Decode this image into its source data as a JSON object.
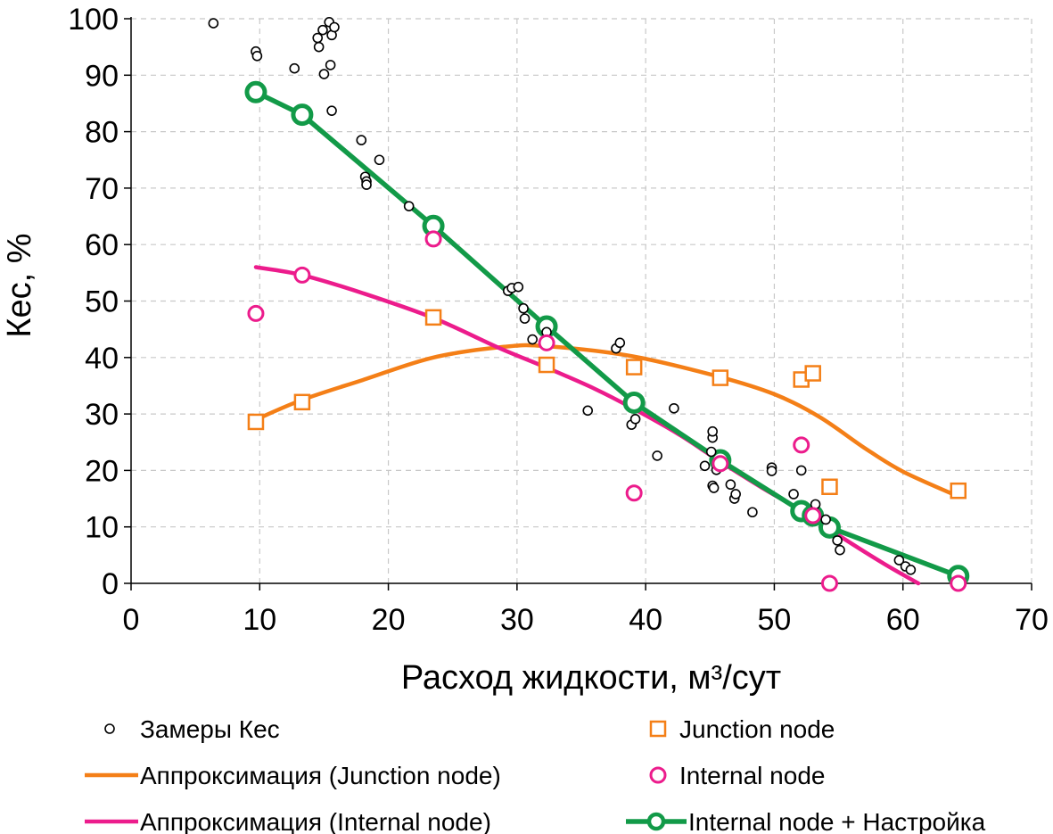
{
  "chart_data": {
    "type": "scatter",
    "xlabel": "Расход жидкости, м³/сут",
    "ylabel": "Кес, %",
    "xlim": [
      0,
      70
    ],
    "ylim": [
      0,
      100
    ],
    "xticks": [
      "0",
      "10",
      "20",
      "30",
      "40",
      "50",
      "60",
      "70"
    ],
    "yticks": [
      "0",
      "10",
      "20",
      "30",
      "40",
      "50",
      "60",
      "70",
      "80",
      "90",
      "100"
    ],
    "grid": "dashed",
    "legend": "bottom",
    "series": [
      {
        "name": "Замеры Кес",
        "kind": "scatter",
        "marker": "circle-small",
        "color": "#000000",
        "points": [
          [
            6.4,
            99.2
          ],
          [
            9.7,
            94.2
          ],
          [
            9.8,
            93.4
          ],
          [
            12.7,
            91.2
          ],
          [
            14.5,
            96.6
          ],
          [
            14.6,
            95.0
          ],
          [
            14.9,
            98.0
          ],
          [
            15.0,
            90.2
          ],
          [
            15.4,
            99.4
          ],
          [
            15.5,
            91.8
          ],
          [
            15.6,
            97.1
          ],
          [
            15.8,
            98.5
          ],
          [
            15.6,
            83.7
          ],
          [
            17.9,
            78.5
          ],
          [
            18.2,
            72.0
          ],
          [
            18.3,
            71.2
          ],
          [
            18.3,
            70.6
          ],
          [
            19.3,
            75.0
          ],
          [
            21.6,
            66.8
          ],
          [
            29.3,
            51.8
          ],
          [
            29.6,
            52.3
          ],
          [
            30.1,
            52.5
          ],
          [
            30.5,
            48.7
          ],
          [
            30.6,
            46.9
          ],
          [
            31.2,
            43.2
          ],
          [
            32.3,
            44.5
          ],
          [
            35.5,
            30.6
          ],
          [
            37.7,
            41.6
          ],
          [
            38.0,
            42.6
          ],
          [
            38.9,
            28.1
          ],
          [
            39.2,
            29.1
          ],
          [
            40.9,
            22.6
          ],
          [
            42.2,
            31.0
          ],
          [
            44.6,
            20.8
          ],
          [
            45.2,
            25.8
          ],
          [
            45.2,
            26.9
          ],
          [
            45.1,
            23.3
          ],
          [
            45.2,
            17.3
          ],
          [
            45.3,
            16.9
          ],
          [
            45.5,
            20.1
          ],
          [
            46.6,
            17.5
          ],
          [
            46.9,
            15.0
          ],
          [
            47.0,
            15.8
          ],
          [
            48.3,
            12.6
          ],
          [
            49.8,
            20.5
          ],
          [
            49.8,
            19.9
          ],
          [
            51.5,
            15.8
          ],
          [
            52.1,
            20.0
          ],
          [
            53.2,
            14.0
          ],
          [
            54.0,
            11.3
          ],
          [
            54.9,
            7.6
          ],
          [
            55.1,
            5.9
          ],
          [
            59.7,
            4.1
          ],
          [
            60.2,
            3.0
          ],
          [
            60.6,
            2.4
          ]
        ]
      },
      {
        "name": "Аппроксимация (Junction node)",
        "kind": "line",
        "color": "#F47F17",
        "points": [
          [
            9.7,
            29.0
          ],
          [
            13.3,
            32.5
          ],
          [
            18,
            36.0
          ],
          [
            23.5,
            40.0
          ],
          [
            29,
            41.9
          ],
          [
            32.3,
            42.0
          ],
          [
            39,
            40.2
          ],
          [
            45.7,
            36.6
          ],
          [
            50,
            33.5
          ],
          [
            53.5,
            29.5
          ],
          [
            57,
            24.0
          ],
          [
            60,
            19.8
          ],
          [
            64.3,
            15.4
          ]
        ]
      },
      {
        "name": "Аппроксимация (Internal node)",
        "kind": "line",
        "color": "#EC1C8C",
        "points": [
          [
            9.7,
            56.0
          ],
          [
            13.3,
            54.6
          ],
          [
            18,
            51.4
          ],
          [
            23.5,
            47.0
          ],
          [
            28.5,
            41.8
          ],
          [
            32.3,
            38.2
          ],
          [
            36,
            34.5
          ],
          [
            39,
            31.0
          ],
          [
            42.5,
            26.5
          ],
          [
            45.7,
            21.7
          ],
          [
            49,
            17.0
          ],
          [
            52,
            13.0
          ],
          [
            55,
            8.5
          ],
          [
            58.5,
            3.5
          ],
          [
            61.2,
            0.0
          ]
        ]
      },
      {
        "name": "Junction node",
        "kind": "scatter",
        "marker": "square",
        "color": "#F47F17",
        "points": [
          [
            9.7,
            28.6
          ],
          [
            13.3,
            32.1
          ],
          [
            23.5,
            47.1
          ],
          [
            32.3,
            38.7
          ],
          [
            39.1,
            38.3
          ],
          [
            45.8,
            36.4
          ],
          [
            52.1,
            36.1
          ],
          [
            53.0,
            37.2
          ],
          [
            54.3,
            17.1
          ],
          [
            64.3,
            16.4
          ]
        ]
      },
      {
        "name": "Internal node",
        "kind": "scatter",
        "marker": "circle",
        "color": "#EC1C8C",
        "points": [
          [
            9.7,
            47.8
          ],
          [
            13.3,
            54.6
          ],
          [
            23.5,
            61.0
          ],
          [
            32.3,
            42.6
          ],
          [
            39.1,
            16.0
          ],
          [
            45.8,
            21.2
          ],
          [
            52.1,
            24.5
          ],
          [
            53.0,
            12.0
          ],
          [
            54.3,
            0.0
          ],
          [
            64.3,
            0.0
          ]
        ]
      },
      {
        "name": "Internal node + Настройка",
        "kind": "line-markers",
        "color": "#129A48",
        "points": [
          [
            9.7,
            87.0
          ],
          [
            13.3,
            83.0
          ],
          [
            23.5,
            63.3
          ],
          [
            32.3,
            45.5
          ],
          [
            39.1,
            32.0
          ],
          [
            45.8,
            21.8
          ],
          [
            52.1,
            12.8
          ],
          [
            53.0,
            12.0
          ],
          [
            54.3,
            9.9
          ],
          [
            64.3,
            1.3
          ]
        ]
      }
    ]
  }
}
